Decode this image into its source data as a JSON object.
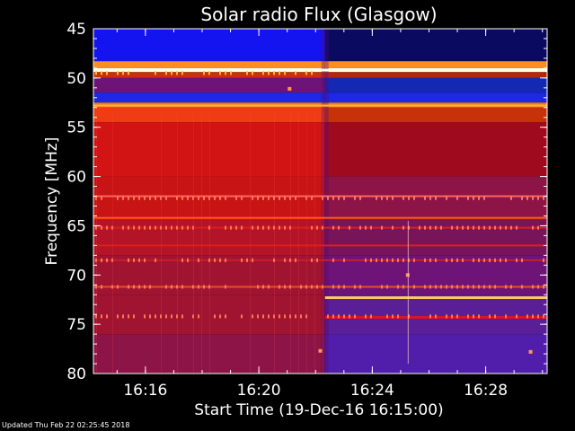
{
  "chart_data": {
    "type": "heatmap",
    "title": "Solar radio Flux (Glasgow)",
    "xlabel": "Start Time (19-Dec-16 16:15:00)",
    "ylabel": "Frequency [MHz]",
    "x_unit": "minutes",
    "xlim": [
      "16:14:10",
      "16:30:10"
    ],
    "ylim": [
      45,
      80
    ],
    "y_inverted": true,
    "x_ticks": [
      "16:16",
      "16:20",
      "16:24",
      "16:28"
    ],
    "y_ticks": [
      45,
      50,
      55,
      60,
      65,
      70,
      75,
      80
    ],
    "colormap": [
      "#000000",
      "#0000ff",
      "#8000ff",
      "#ff0000",
      "#ff8000",
      "#ffff80",
      "#ffffff"
    ],
    "background_change_time": "16:22:20",
    "bands_mhz": [
      {
        "from": 45.0,
        "to": 48.3,
        "before": "#1414f0",
        "after": "#0a0a60"
      },
      {
        "from": 48.3,
        "to": 49.0,
        "before": "#ff8c1e",
        "after": "#ff8c1e"
      },
      {
        "from": 49.0,
        "to": 49.4,
        "before": "#ffffe6",
        "after": "#ffffe6"
      },
      {
        "from": 49.4,
        "to": 50.0,
        "before": "#c8320a",
        "after": "#b4280a"
      },
      {
        "from": 50.0,
        "to": 51.5,
        "before": "#6e1478",
        "after": "#1428b4"
      },
      {
        "from": 51.5,
        "to": 52.5,
        "before": "#1e28e6",
        "after": "#1e28e6"
      },
      {
        "from": 52.5,
        "to": 53.0,
        "before": "#ff7814",
        "after": "#ff7814"
      },
      {
        "from": 53.0,
        "to": 54.5,
        "before": "#f03c14",
        "after": "#c8320a"
      },
      {
        "from": 54.5,
        "to": 60.0,
        "before": "#d21414",
        "after": "#a00a1e"
      },
      {
        "from": 60.0,
        "to": 64.5,
        "before": "#c81414",
        "after": "#8c1446"
      },
      {
        "from": 64.5,
        "to": 68.0,
        "before": "#b41428",
        "after": "#78145a"
      },
      {
        "from": 68.0,
        "to": 72.0,
        "before": "#a01432",
        "after": "#6e1478"
      },
      {
        "from": 72.0,
        "to": 76.0,
        "before": "#a01432",
        "after": "#5a1e96"
      },
      {
        "from": 76.0,
        "to": 80.0,
        "before": "#8c1446",
        "after": "#501eaa"
      }
    ],
    "lines_mhz": [
      {
        "freq": 49.2,
        "color": "#ffffe6"
      },
      {
        "freq": 52.8,
        "color": "#ffb43c"
      },
      {
        "freq": 62.0,
        "color": "#ff6464"
      },
      {
        "freq": 64.2,
        "color": "#ff5a1e"
      },
      {
        "freq": 65.2,
        "color": "#dc1e1e"
      },
      {
        "freq": 67.0,
        "color": "#dc1e1e"
      },
      {
        "freq": 68.5,
        "color": "#c81e28"
      },
      {
        "freq": 71.2,
        "color": "#e65028"
      }
    ],
    "after_lines_mhz": [
      {
        "freq": 72.3,
        "color": "#ffc864"
      },
      {
        "freq": 74.3,
        "color": "#dc141e"
      }
    ],
    "speckle_rows_mhz": [
      49.5,
      62.2,
      65.2,
      68.5,
      71.2,
      74.2
    ],
    "bursts": [
      {
        "t": "16:21:05",
        "f": 51.1
      },
      {
        "t": "16:22:10",
        "f": 77.7
      },
      {
        "t": "16:25:15",
        "f": 70.0
      },
      {
        "t": "16:29:35",
        "f": 77.8
      }
    ]
  },
  "footer": "Updated Thu Feb 22 02:25:45 2018"
}
